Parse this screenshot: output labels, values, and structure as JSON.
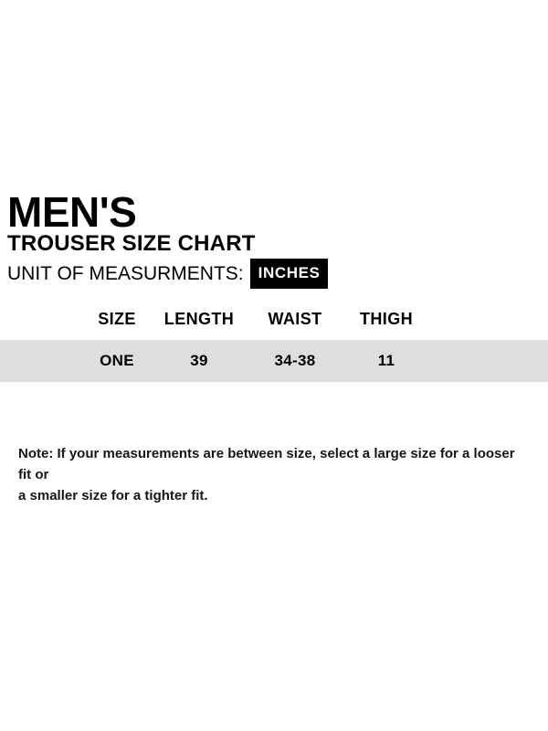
{
  "page": {
    "title": "MEN'S",
    "subtitle": "TROUSER SIZE CHART",
    "unit_label": "UNIT OF MEASURMENTS:",
    "unit_value": "INCHES"
  },
  "colors": {
    "badge_bg": "#000000",
    "badge_text": "#ffffff",
    "row_bg": "#dedede",
    "text": "#000000"
  },
  "chart_data": {
    "type": "table",
    "columns": [
      "SIZE",
      "LENGTH",
      "WAIST",
      "THIGH"
    ],
    "rows": [
      [
        "ONE",
        "39",
        "34-38",
        "11"
      ]
    ]
  },
  "note": {
    "line1": "Note: If your measurements are between size, select a large size for a looser fit or",
    "line2": "a smaller size for a tighter fit."
  }
}
